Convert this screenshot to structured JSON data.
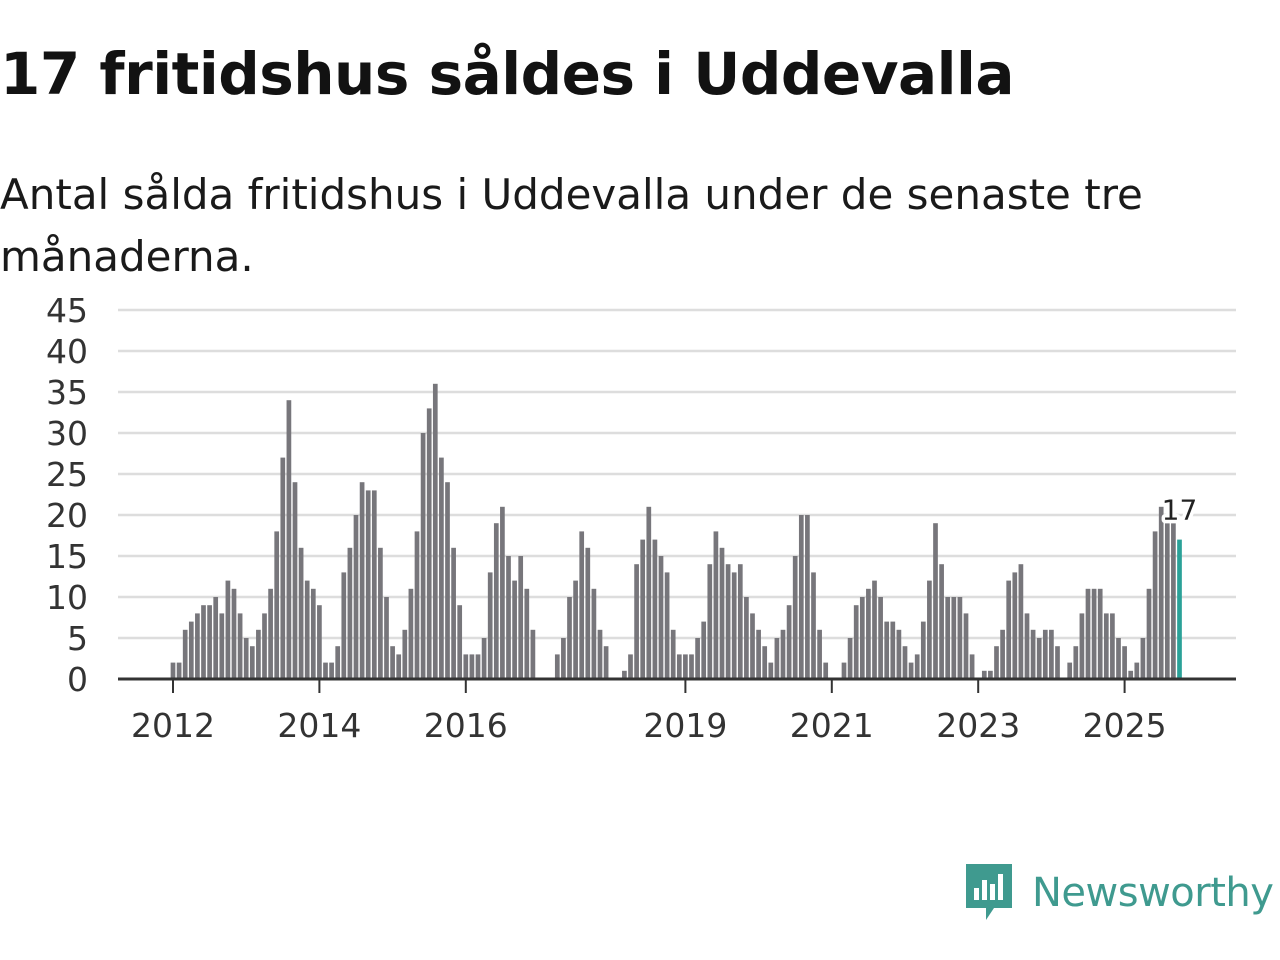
{
  "title": "17 fritidshus såldes i Uddevalla",
  "subtitle": "Antal sålda fritidshus i Uddevalla under de senaste tre månaderna.",
  "brand": {
    "name": "Newsworthy",
    "icon": "newsworthy-logo-icon",
    "color": "#3f9a8f"
  },
  "colors": {
    "bar": "#77767b",
    "highlight": "#2aa198",
    "grid": "#dddddd",
    "axis": "#333333"
  },
  "chart_data": {
    "type": "bar",
    "title": "17 fritidshus såldes i Uddevalla",
    "subtitle": "Antal sålda fritidshus i Uddevalla under de senaste tre månaderna.",
    "xlabel": "",
    "ylabel": "",
    "ylim": [
      0,
      45
    ],
    "yticks": [
      0,
      5,
      10,
      15,
      20,
      25,
      30,
      35,
      40,
      45
    ],
    "grid": true,
    "start": "2012-01",
    "x_tick_labels": [
      {
        "label": "2012",
        "index": 0
      },
      {
        "label": "2014",
        "index": 24
      },
      {
        "label": "2016",
        "index": 48
      },
      {
        "label": "2019",
        "index": 84
      },
      {
        "label": "2021",
        "index": 108
      },
      {
        "label": "2023",
        "index": 132
      },
      {
        "label": "2025",
        "index": 156
      }
    ],
    "highlight": {
      "index": 165,
      "label": "17"
    },
    "series": [
      {
        "name": "Antal sålda fritidshus",
        "values": [
          2,
          2,
          6,
          7,
          8,
          9,
          9,
          10,
          8,
          12,
          11,
          8,
          5,
          4,
          6,
          8,
          11,
          18,
          27,
          34,
          24,
          16,
          12,
          11,
          9,
          2,
          2,
          4,
          13,
          16,
          20,
          24,
          23,
          23,
          16,
          10,
          4,
          3,
          6,
          11,
          18,
          30,
          33,
          36,
          27,
          24,
          16,
          9,
          3,
          3,
          3,
          5,
          13,
          19,
          21,
          15,
          12,
          15,
          11,
          6,
          0,
          0,
          0,
          3,
          5,
          10,
          12,
          18,
          16,
          11,
          6,
          4,
          0,
          0,
          1,
          3,
          14,
          17,
          21,
          17,
          15,
          13,
          6,
          3,
          3,
          3,
          5,
          7,
          14,
          18,
          16,
          14,
          13,
          14,
          10,
          8,
          6,
          4,
          2,
          5,
          6,
          9,
          15,
          20,
          20,
          13,
          6,
          2,
          0,
          0,
          2,
          5,
          9,
          10,
          11,
          12,
          10,
          7,
          7,
          6,
          4,
          2,
          3,
          7,
          12,
          19,
          14,
          10,
          10,
          10,
          8,
          3,
          0,
          1,
          1,
          4,
          6,
          12,
          13,
          14,
          8,
          6,
          5,
          6,
          6,
          4,
          0,
          2,
          4,
          8,
          11,
          11,
          11,
          8,
          8,
          5,
          4,
          1,
          2,
          5,
          11,
          18,
          21,
          19,
          19,
          17
        ]
      }
    ]
  }
}
